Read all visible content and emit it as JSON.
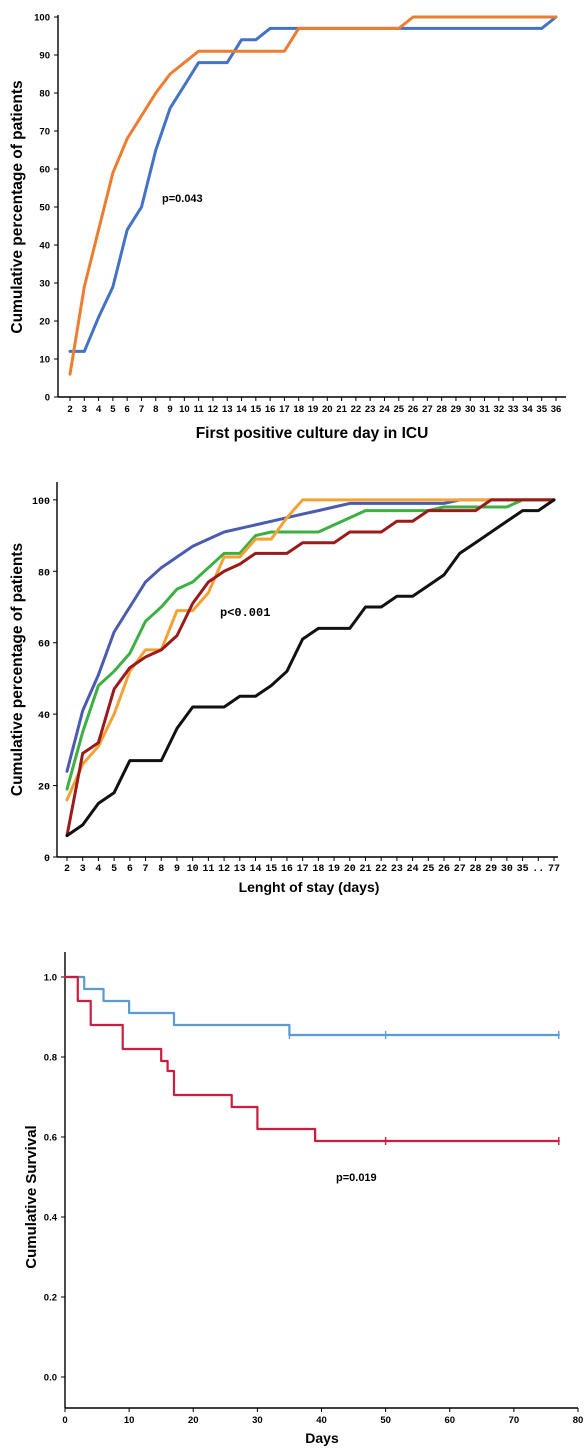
{
  "chart_data": [
    {
      "type": "line",
      "ylabel": "Cumulative percentage of patients",
      "xlabel": "First positive culture day in ICU",
      "x": [
        "2",
        "3",
        "4",
        "5",
        "6",
        "7",
        "8",
        "9",
        "10",
        "11",
        "12",
        "13",
        "14",
        "15",
        "16",
        "17",
        "18",
        "19",
        "20",
        "21",
        "22",
        "23",
        "24",
        "25",
        "26",
        "27",
        "28",
        "29",
        "30",
        "31",
        "32",
        "33",
        "34",
        "35",
        "36"
      ],
      "yticks": [
        "0",
        "10",
        "20",
        "30",
        "40",
        "50",
        "60",
        "70",
        "80",
        "90",
        "100"
      ],
      "ylim": [
        0,
        100
      ],
      "annotation": "p=0.043",
      "series": [
        {
          "color": "#4472c4",
          "values": [
            12,
            12,
            21,
            29,
            44,
            50,
            65,
            76,
            82,
            88,
            88,
            88,
            94,
            94,
            97,
            97,
            97,
            97,
            97,
            97,
            97,
            97,
            97,
            97,
            97,
            97,
            97,
            97,
            97,
            97,
            97,
            97,
            97,
            97,
            100
          ]
        },
        {
          "color": "#ed7d31",
          "values": [
            6,
            29,
            44,
            59,
            68,
            74,
            80,
            85,
            88,
            91,
            91,
            91,
            91,
            91,
            91,
            91,
            97,
            97,
            97,
            97,
            97,
            97,
            97,
            97,
            100,
            100,
            100,
            100,
            100,
            100,
            100,
            100,
            100,
            100,
            100
          ]
        }
      ]
    },
    {
      "type": "line",
      "ylabel": "Cumulative percentage of patients",
      "xlabel": "Lenght of stay (days)",
      "x": [
        "2",
        "3",
        "4",
        "5",
        "6",
        "7",
        "8",
        "9",
        "10",
        "11",
        "12",
        "13",
        "14",
        "15",
        "16",
        "17",
        "18",
        "19",
        "20",
        "21",
        "22",
        "23",
        "24",
        "25",
        "26",
        "27",
        "28",
        "29",
        "30",
        "35",
        "..",
        "77"
      ],
      "yticks": [
        "0",
        "20",
        "40",
        "60",
        "80",
        "100"
      ],
      "ylim": [
        0,
        105
      ],
      "annotation": "p<0.001",
      "series": [
        {
          "color": "#4a5bb0",
          "values": [
            24,
            41,
            51,
            63,
            70,
            77,
            81,
            84,
            87,
            89,
            91,
            92,
            93,
            94,
            95,
            96,
            97,
            98,
            99,
            99,
            99,
            99,
            99,
            99,
            99,
            100,
            100,
            100,
            100,
            100,
            100,
            100
          ]
        },
        {
          "color": "#3cb043",
          "values": [
            19,
            35,
            48,
            52,
            57,
            66,
            70,
            75,
            77,
            81,
            85,
            85,
            90,
            91,
            91,
            91,
            91,
            93,
            95,
            97,
            97,
            97,
            97,
            97,
            98,
            98,
            98,
            98,
            98,
            100,
            100,
            100
          ]
        },
        {
          "color": "#f4a236",
          "values": [
            16,
            26,
            31,
            40,
            52,
            58,
            58,
            69,
            69,
            74,
            84,
            84,
            89,
            89,
            95,
            100,
            100,
            100,
            100,
            100,
            100,
            100,
            100,
            100,
            100,
            100,
            100,
            100,
            100,
            100,
            100,
            100
          ]
        },
        {
          "color": "#9b1b1b",
          "values": [
            6,
            29,
            32,
            47,
            53,
            56,
            58,
            62,
            71,
            77,
            80,
            82,
            85,
            85,
            85,
            88,
            88,
            88,
            91,
            91,
            91,
            94,
            94,
            97,
            97,
            97,
            97,
            100,
            100,
            100,
            100,
            100
          ]
        },
        {
          "color": "#111111",
          "values": [
            6,
            9,
            15,
            18,
            27,
            27,
            27,
            36,
            42,
            42,
            42,
            45,
            45,
            48,
            52,
            61,
            64,
            64,
            64,
            70,
            70,
            73,
            73,
            76,
            79,
            85,
            88,
            91,
            94,
            97,
            97,
            100
          ]
        }
      ]
    },
    {
      "type": "line",
      "ylabel": "Cumulative  Survival",
      "xlabel": "Days",
      "xticks": [
        "0",
        "10",
        "20",
        "30",
        "40",
        "50",
        "60",
        "70",
        "80"
      ],
      "yticks": [
        "0.0",
        "0.2",
        "0.4",
        "0.6",
        "0.8",
        "1.0"
      ],
      "xlim": [
        0,
        80
      ],
      "ylim": [
        0,
        1.05
      ],
      "annotation": "p=0.019",
      "series": [
        {
          "color": "#5b9bd5",
          "step": true,
          "points": [
            [
              0,
              1.0
            ],
            [
              3,
              0.97
            ],
            [
              6,
              0.94
            ],
            [
              10,
              0.91
            ],
            [
              17,
              0.88
            ],
            [
              35,
              0.855
            ],
            [
              77,
              0.855
            ]
          ],
          "censored": [
            [
              35,
              0.855
            ],
            [
              50,
              0.855
            ],
            [
              77,
              0.855
            ]
          ]
        },
        {
          "color": "#cc1c3f",
          "step": true,
          "points": [
            [
              0,
              1.0
            ],
            [
              2,
              0.94
            ],
            [
              4,
              0.88
            ],
            [
              9,
              0.82
            ],
            [
              15,
              0.79
            ],
            [
              16,
              0.765
            ],
            [
              17,
              0.705
            ],
            [
              26,
              0.675
            ],
            [
              30,
              0.62
            ],
            [
              39,
              0.59
            ],
            [
              77,
              0.59
            ]
          ],
          "censored": [
            [
              50,
              0.59
            ],
            [
              77,
              0.59
            ]
          ]
        }
      ]
    }
  ]
}
